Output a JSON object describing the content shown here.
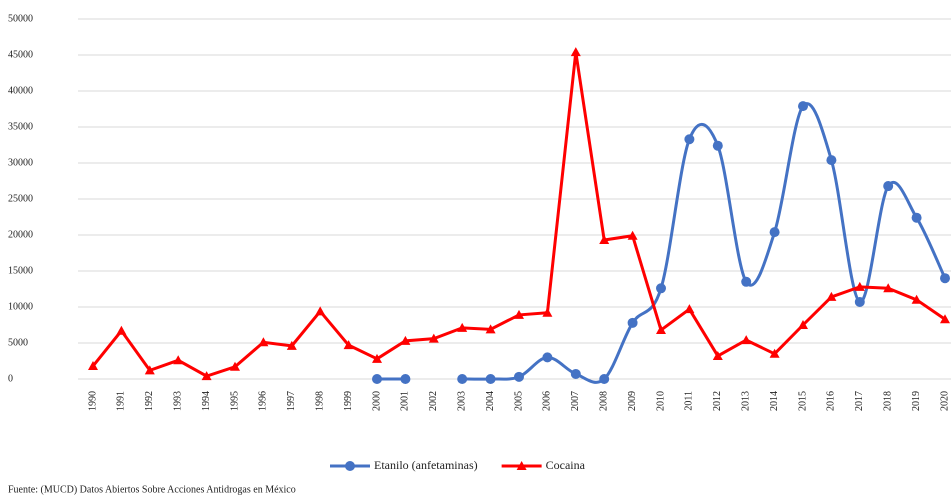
{
  "chart_data": {
    "type": "line",
    "categories": [
      "1990",
      "1991",
      "1992",
      "1993",
      "1994",
      "1995",
      "1996",
      "1997",
      "1998",
      "1999",
      "2000",
      "2001",
      "2002",
      "2003",
      "2004",
      "2005",
      "2006",
      "2007",
      "2008",
      "2009",
      "2010",
      "2011",
      "2012",
      "2013",
      "2014",
      "2015",
      "2016",
      "2017",
      "2018",
      "2019",
      "2020"
    ],
    "series": [
      {
        "name": "Etanilo (anfetaminas)",
        "color": "#4472c4",
        "marker": "circle",
        "smooth": true,
        "values": [
          null,
          null,
          null,
          null,
          null,
          null,
          null,
          null,
          null,
          null,
          0,
          0,
          null,
          0,
          0,
          300,
          3000,
          700,
          0,
          7800,
          12600,
          33300,
          32400,
          13500,
          20400,
          37900,
          30400,
          10700,
          26800,
          22400,
          14000
        ]
      },
      {
        "name": "Cocaina",
        "color": "#ff0000",
        "marker": "triangle",
        "smooth": false,
        "values": [
          1800,
          6700,
          1200,
          2600,
          400,
          1700,
          5100,
          4600,
          9400,
          4700,
          2800,
          5300,
          5600,
          7100,
          6900,
          8900,
          9200,
          45400,
          19300,
          19900,
          6800,
          9700,
          3200,
          5400,
          3500,
          7500,
          11400,
          12800,
          12600,
          11000,
          8300
        ]
      }
    ],
    "ylim": [
      0,
      50000
    ],
    "yticks": [
      0,
      5000,
      10000,
      15000,
      20000,
      25000,
      30000,
      35000,
      40000,
      45000,
      50000
    ],
    "grid": true,
    "legend": "bottom",
    "source": "Fuente: (MUCD) Datos Abiertos Sobre Acciones Antidrogas en México"
  }
}
